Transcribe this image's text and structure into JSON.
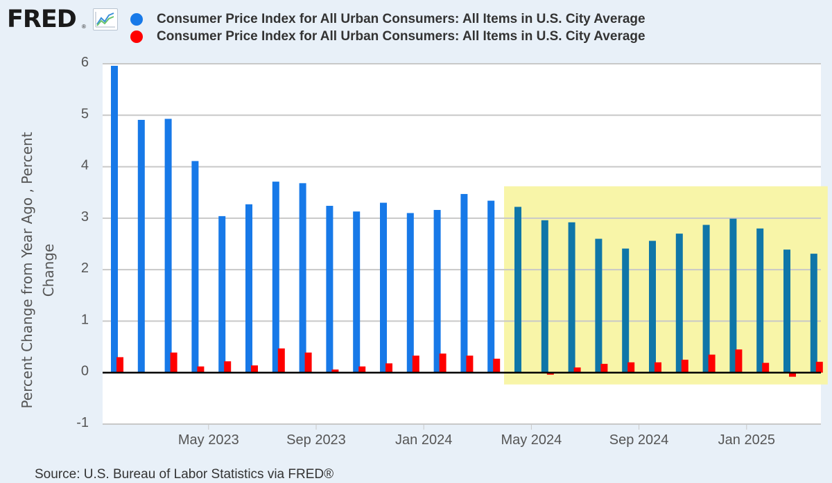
{
  "brand": {
    "name": "FRED",
    "registered_mark": "®",
    "icon": "line-chart-icon"
  },
  "legend": {
    "items": [
      {
        "label": "Consumer Price Index for All Urban Consumers: All Items in U.S. City Average",
        "color": "#1779e8"
      },
      {
        "label": "Consumer Price Index for All Urban Consumers: All Items in U.S. City Average",
        "color": "#ff0000"
      }
    ]
  },
  "source": "Source: U.S. Bureau of Labor Statistics via FRED®",
  "chart_data": {
    "type": "bar",
    "title": "",
    "xlabel": "",
    "ylabel": "Percent Change from Year Ago , Percent Change",
    "ylabel_lines": [
      "Percent Change from Year Ago , Percent",
      "Change"
    ],
    "ylim": [
      -1,
      6
    ],
    "yticks": [
      "-1",
      "0",
      "1",
      "2",
      "3",
      "4",
      "5",
      "6"
    ],
    "grid": true,
    "categories": [
      "Jan 2023",
      "Feb 2023",
      "Mar 2023",
      "Apr 2023",
      "May 2023",
      "Jun 2023",
      "Jul 2023",
      "Aug 2023",
      "Sep 2023",
      "Oct 2023",
      "Nov 2023",
      "Dec 2023",
      "Jan 2024",
      "Feb 2024",
      "Mar 2024",
      "Apr 2024",
      "May 2024",
      "Jun 2024",
      "Jul 2024",
      "Aug 2024",
      "Sep 2024",
      "Oct 2024",
      "Nov 2024",
      "Dec 2024",
      "Jan 2025",
      "Feb 2025",
      "Mar 2025"
    ],
    "xtick_labels": [
      {
        "index": 3.5,
        "label": "May 2023"
      },
      {
        "index": 7.5,
        "label": "Sep 2023"
      },
      {
        "index": 11.5,
        "label": "Jan 2024"
      },
      {
        "index": 15.5,
        "label": "May 2024"
      },
      {
        "index": 19.5,
        "label": "Sep 2024"
      },
      {
        "index": 23.5,
        "label": "Jan 2025"
      }
    ],
    "series": [
      {
        "name": "Consumer Price Index for All Urban Consumers: All Items in U.S. City Average (Percent Change from Year Ago)",
        "color": "#1779e8",
        "highlight_color": "#0f76a8",
        "values": [
          5.96,
          4.91,
          4.93,
          4.11,
          3.04,
          3.27,
          3.71,
          3.68,
          3.24,
          3.13,
          3.3,
          3.1,
          3.16,
          3.47,
          3.34,
          3.22,
          2.96,
          2.92,
          2.6,
          2.41,
          2.56,
          2.7,
          2.87,
          2.99,
          2.8,
          2.39,
          2.31
        ]
      },
      {
        "name": "Consumer Price Index for All Urban Consumers: All Items in U.S. City Average (Percent Change)",
        "color": "#ff0000",
        "values": [
          0.3,
          0.01,
          0.39,
          0.12,
          0.22,
          0.14,
          0.47,
          0.39,
          0.06,
          0.12,
          0.18,
          0.33,
          0.37,
          0.33,
          0.27,
          -0.01,
          -0.04,
          0.1,
          0.17,
          0.2,
          0.2,
          0.25,
          0.35,
          0.45,
          0.19,
          -0.08,
          0.21
        ]
      }
    ],
    "highlight_region": {
      "from_index": 15,
      "to_index": 26,
      "y_range": [
        -0.23,
        3.62
      ],
      "color": "#f8f5a8"
    }
  }
}
